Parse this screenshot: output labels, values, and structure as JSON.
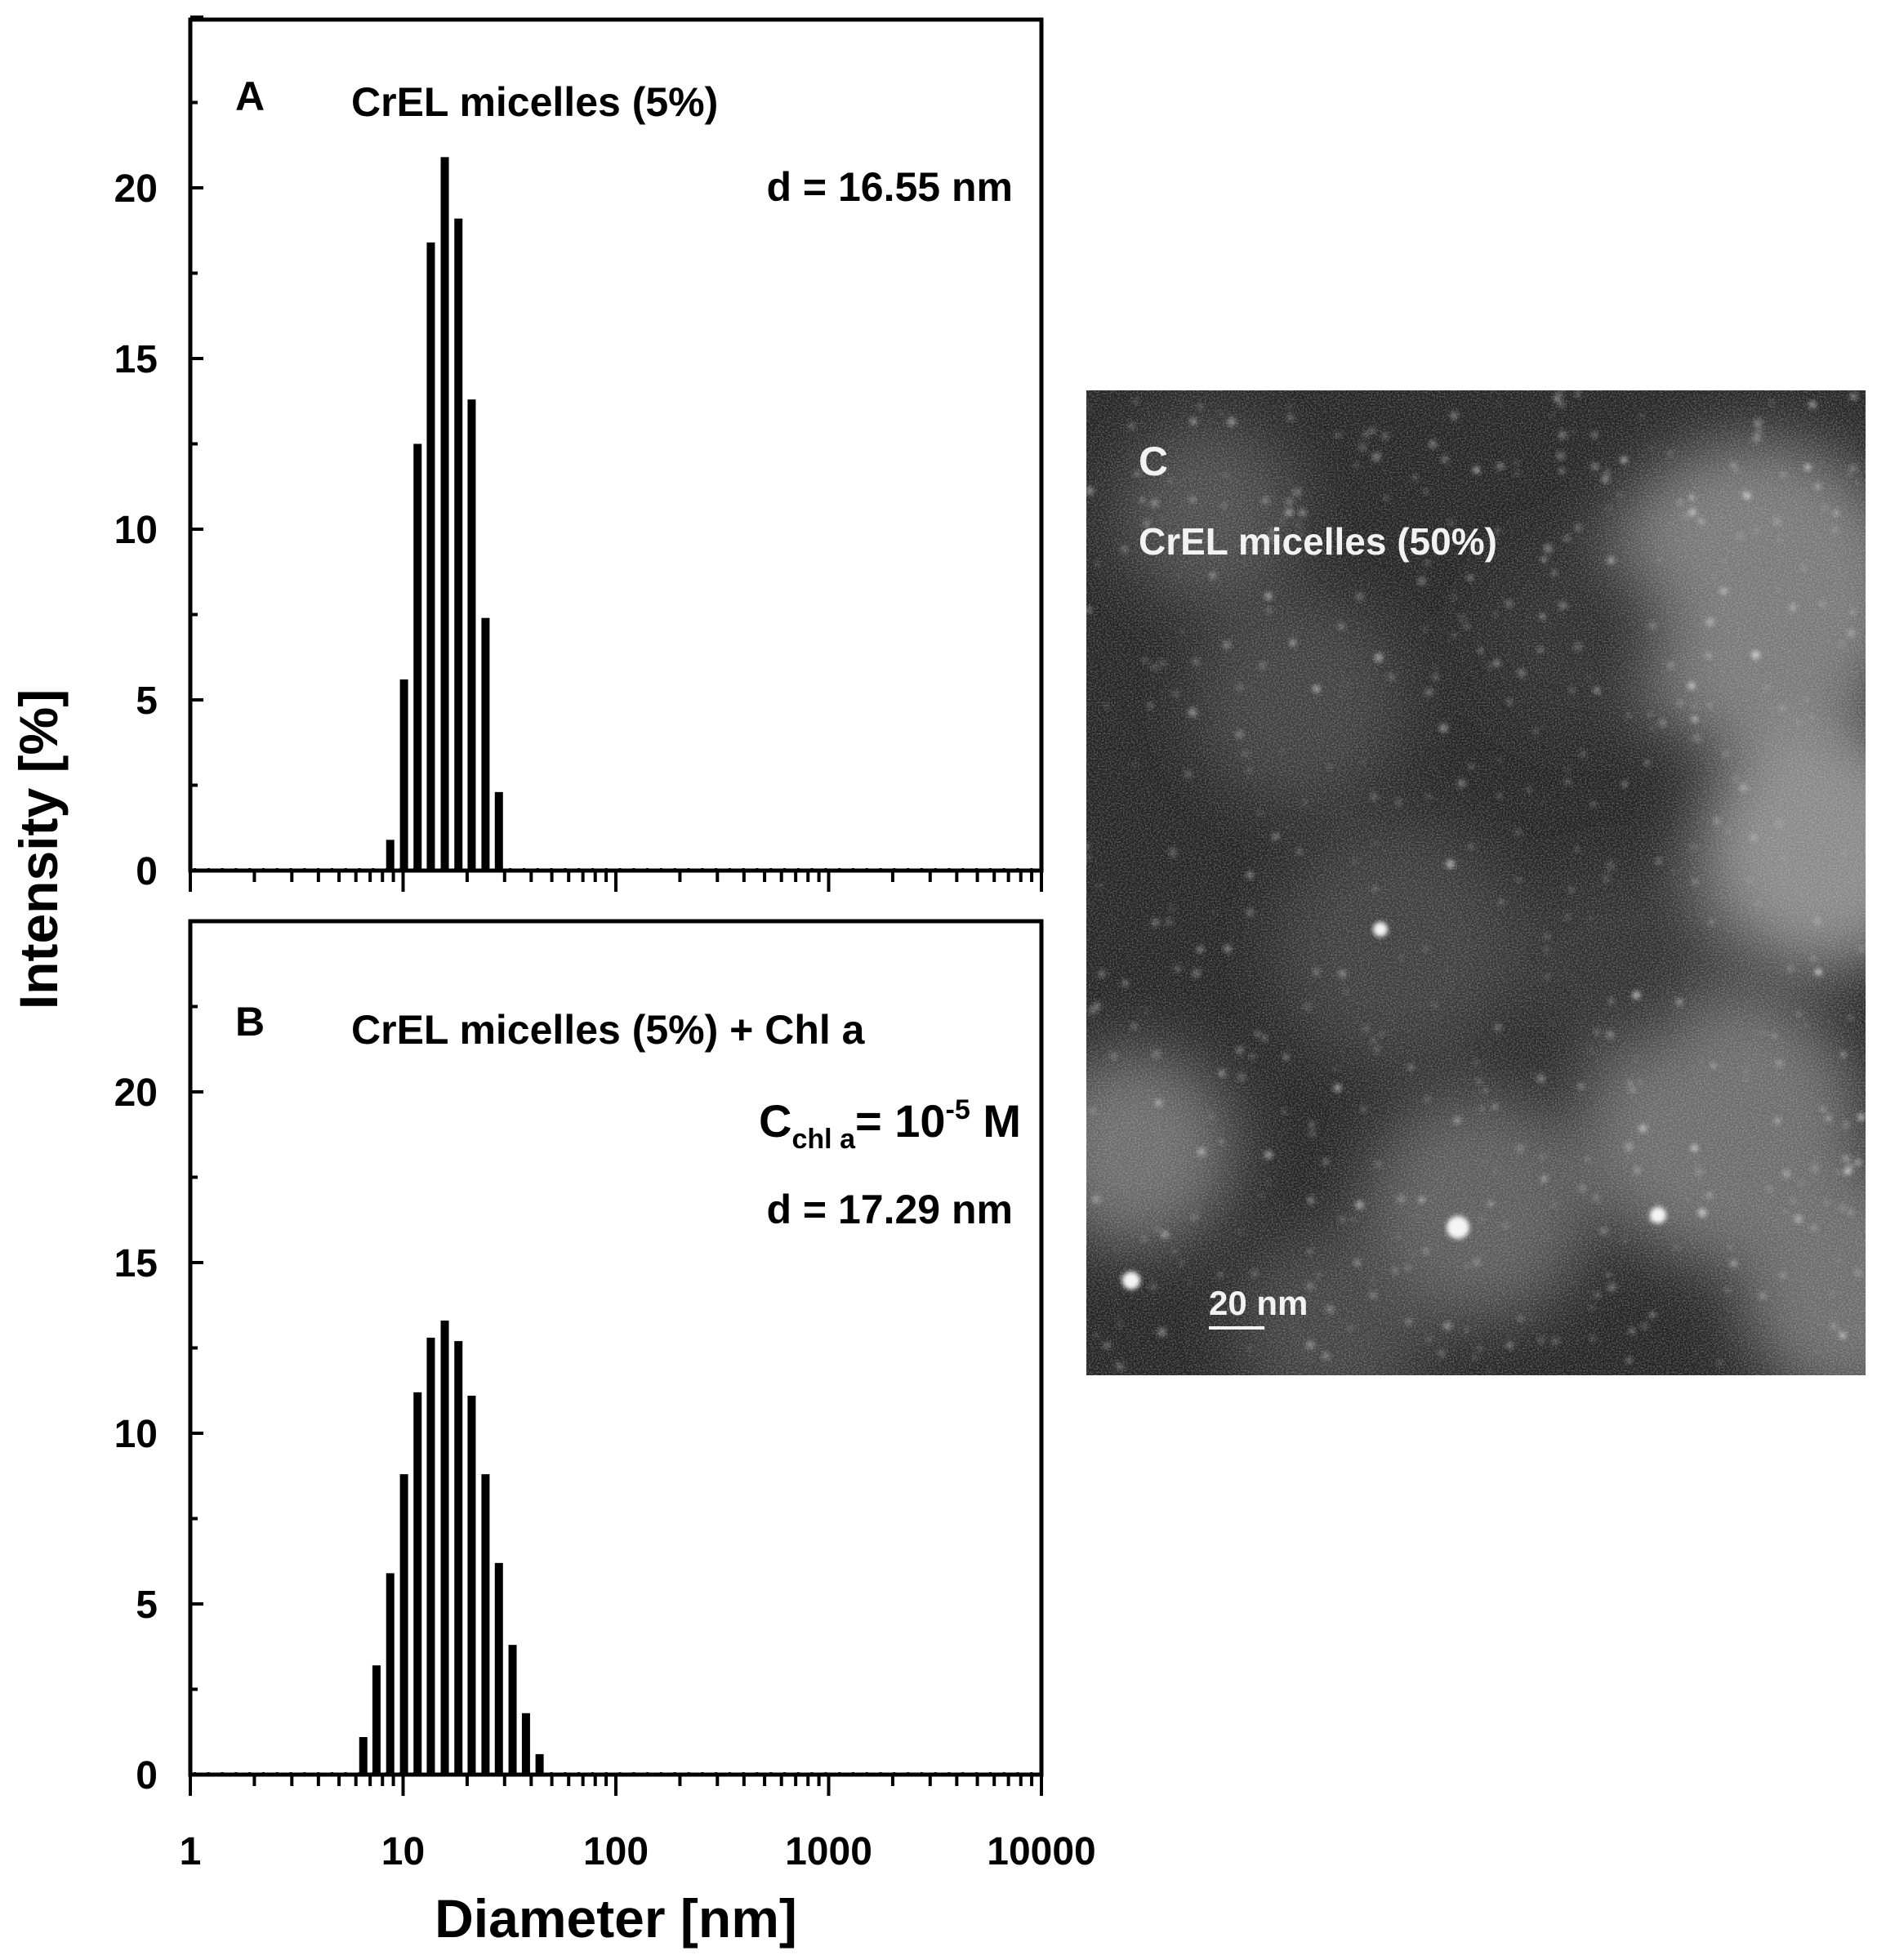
{
  "figure": {
    "y_axis_label": "Intensity [%]",
    "x_axis_label": "Diameter [nm]",
    "x_tick_labels": [
      "1",
      "10",
      "100",
      "1000",
      "10000"
    ],
    "y_tick_labels": [
      "0",
      "5",
      "10",
      "15",
      "20"
    ]
  },
  "panel_c": {
    "letter": "C",
    "label": "CrEL micelles (50%)",
    "scale_bar_label": "20 nm",
    "scale_bar_nm": 20
  },
  "chart_data": [
    {
      "type": "bar",
      "panel": "A",
      "title": "CrEL micelles (5%)",
      "annotations": [
        "d = 16.55 nm"
      ],
      "xlabel": "Diameter [nm]",
      "ylabel": "Intensity [%]",
      "x_scale": "log",
      "xlim": [
        1,
        10000
      ],
      "ylim": [
        0,
        25
      ],
      "x": [
        8.7,
        10.1,
        11.7,
        13.5,
        15.7,
        18.2,
        21.0,
        24.4,
        28.2
      ],
      "values": [
        0.9,
        5.6,
        12.5,
        18.4,
        20.9,
        19.1,
        13.8,
        7.4,
        2.3
      ]
    },
    {
      "type": "bar",
      "panel": "B",
      "title": "CrEL micelles (5%) + Chl a",
      "annotations": [
        "C",
        "chl a",
        "= 10",
        "-5",
        " M",
        "d = 17.29 nm"
      ],
      "xlabel": "Diameter [nm]",
      "ylabel": "Intensity [%]",
      "x_scale": "log",
      "xlim": [
        1,
        10000
      ],
      "ylim": [
        0,
        25
      ],
      "x": [
        6.5,
        7.5,
        8.7,
        10.1,
        11.7,
        13.5,
        15.7,
        18.2,
        21.0,
        24.4,
        28.2,
        32.7,
        37.8,
        43.8
      ],
      "values": [
        1.1,
        3.2,
        5.9,
        8.8,
        11.2,
        12.8,
        13.3,
        12.7,
        11.1,
        8.8,
        6.2,
        3.8,
        1.8,
        0.6
      ]
    }
  ]
}
